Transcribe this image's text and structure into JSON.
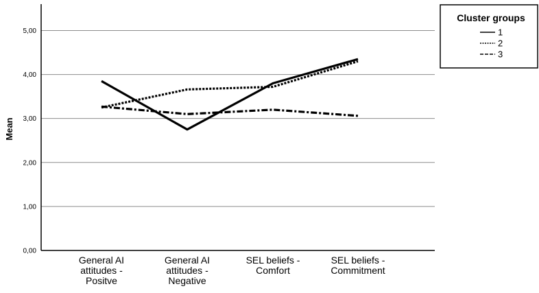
{
  "chart_data": {
    "type": "line",
    "title": "",
    "xlabel": "",
    "ylabel": "Mean",
    "ylim": [
      0,
      5.6
    ],
    "y_ticks": [
      "0,00",
      "1,00",
      "2,00",
      "3,00",
      "4,00",
      "5,00"
    ],
    "y_tick_values": [
      0,
      1,
      2,
      3,
      4,
      5
    ],
    "categories": [
      [
        "General AI",
        "attitudes -",
        "Positve"
      ],
      [
        "General AI",
        "attitudes -",
        "Negative"
      ],
      [
        "SEL beliefs -",
        "Comfort"
      ],
      [
        "SEL beliefs -",
        "Commitment"
      ]
    ],
    "grid": true,
    "legend": {
      "title": "Cluster groups",
      "placement": "top-right"
    },
    "series": [
      {
        "name": "1",
        "values": [
          3.85,
          2.75,
          3.8,
          4.35
        ],
        "style": "solid",
        "color": "#000000"
      },
      {
        "name": "2",
        "values": [
          3.25,
          3.66,
          3.72,
          4.3
        ],
        "style": "dotted",
        "color": "#000000"
      },
      {
        "name": "3",
        "values": [
          3.27,
          3.1,
          3.2,
          3.06
        ],
        "style": "dashed",
        "color": "#000000"
      }
    ],
    "colors": {
      "gridline": "#8c8c8c",
      "axis": "#000000",
      "line": "#000000"
    }
  }
}
